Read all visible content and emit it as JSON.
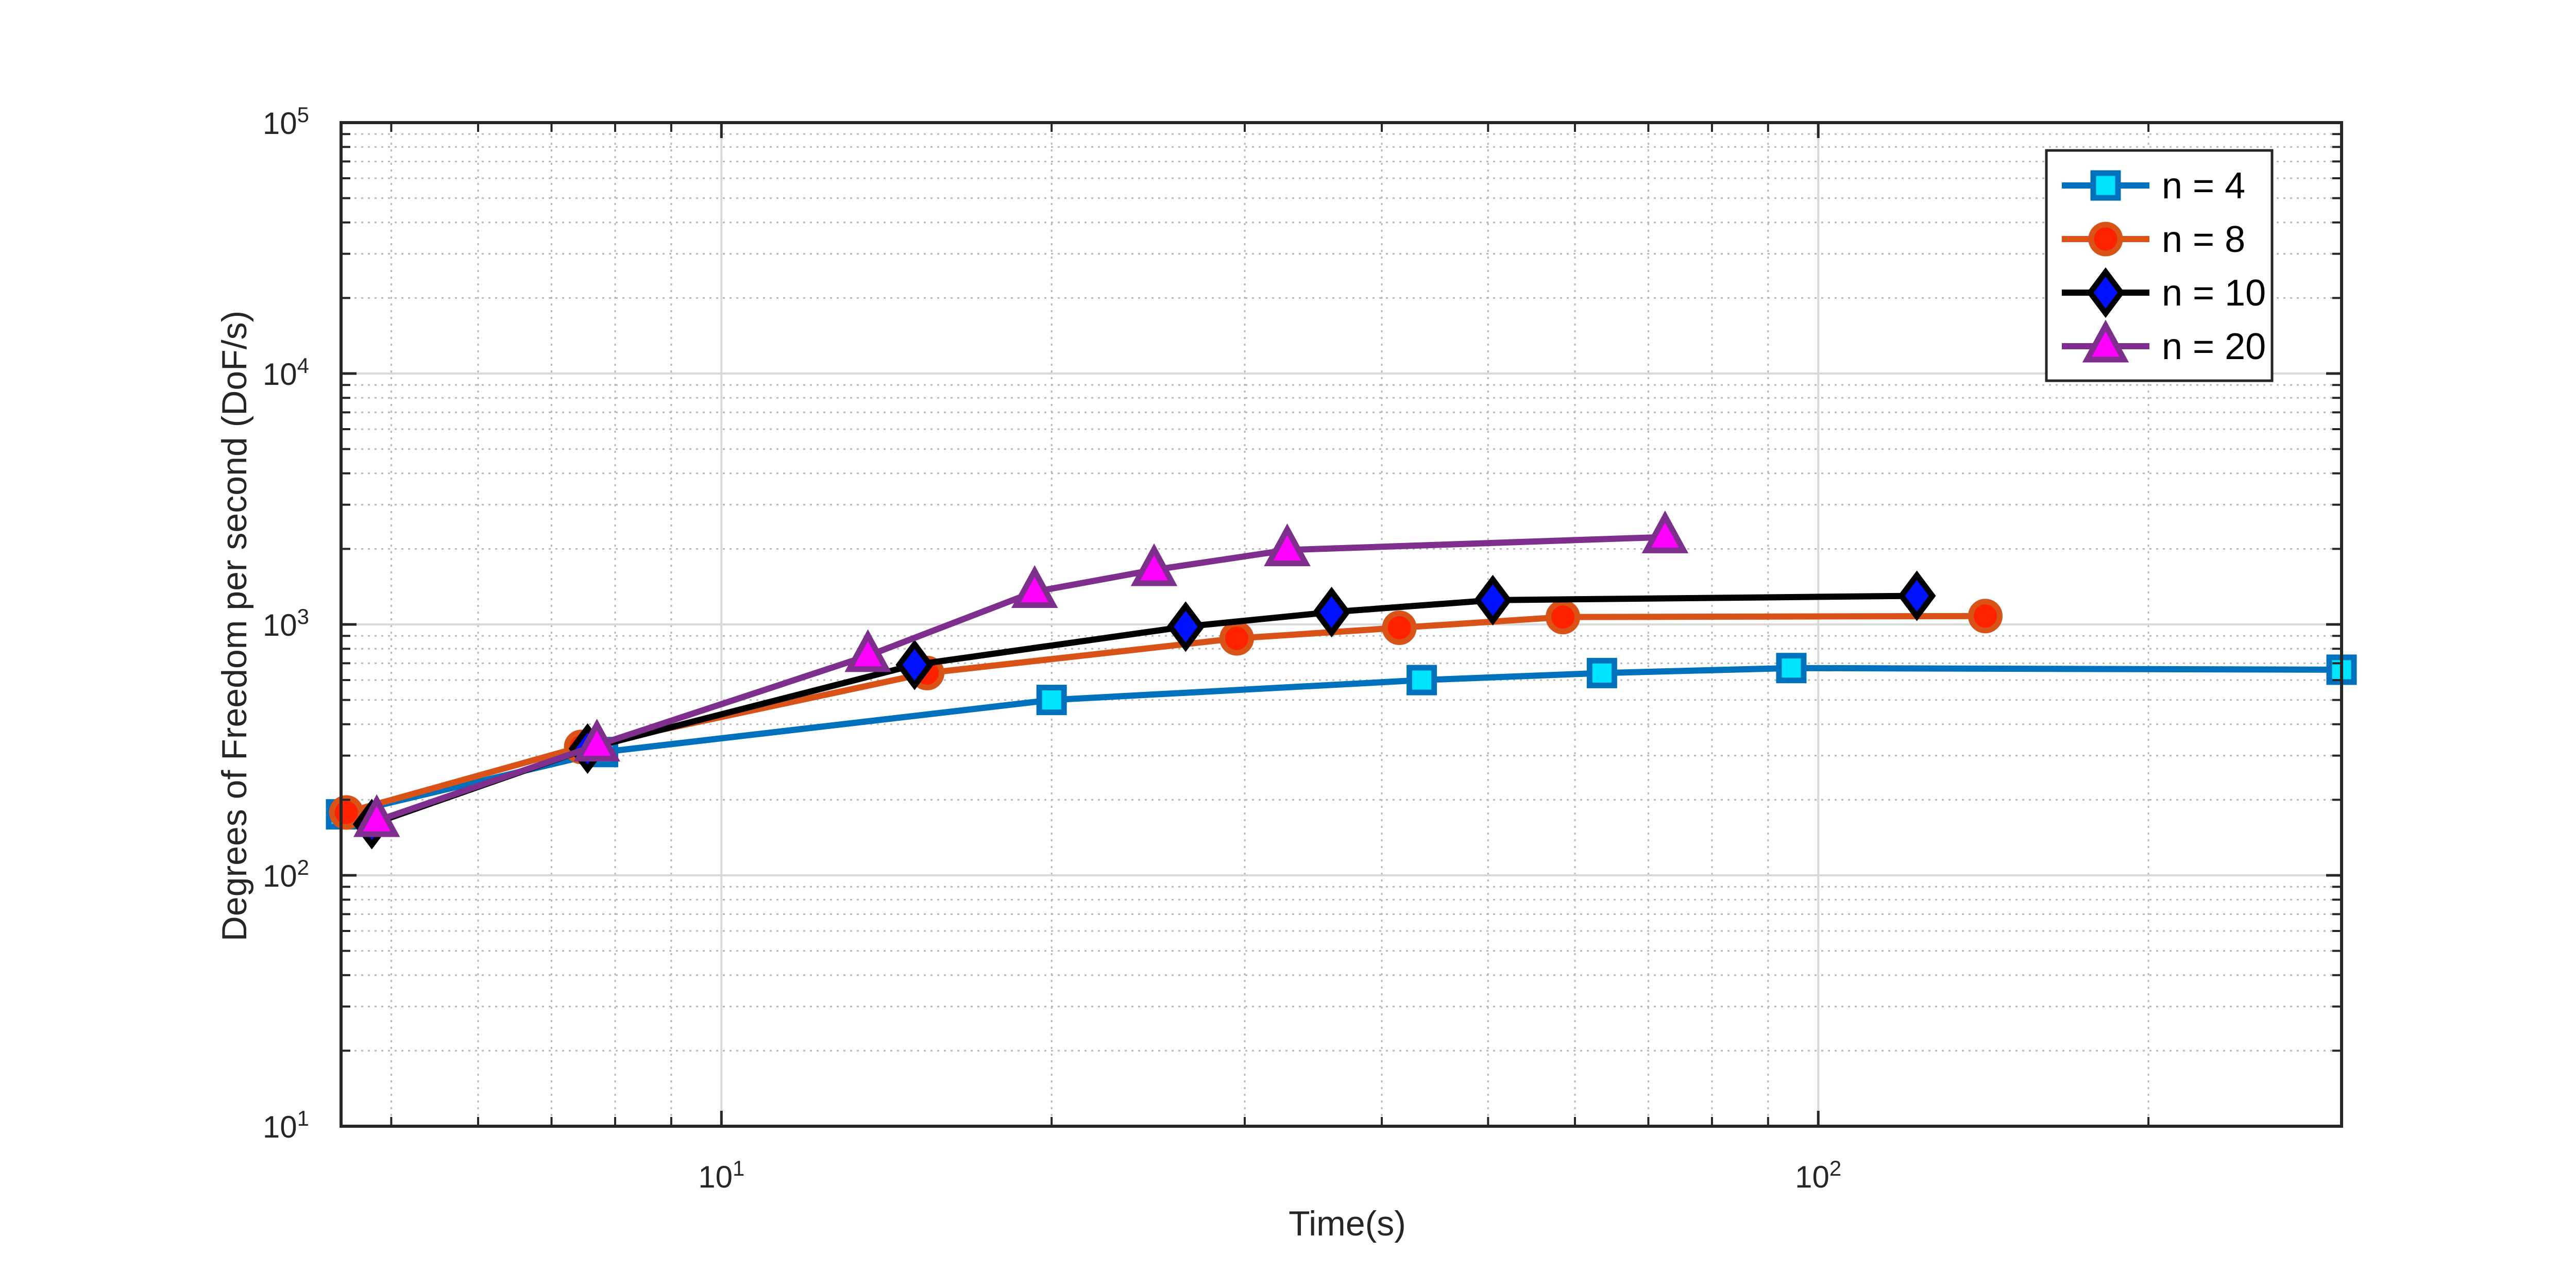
{
  "chart_data": {
    "type": "line",
    "xlabel": "Time(s)",
    "ylabel": "Degrees of Freedom per second (DoF/s)",
    "xscale": "log",
    "yscale": "log",
    "xlim": [
      4.5,
      300
    ],
    "ylim": [
      10,
      100000
    ],
    "grid": true,
    "minor_grid": true,
    "legend_position": "top-right",
    "x_ticks": [
      {
        "base": "10",
        "exp": "1",
        "value": 10
      },
      {
        "base": "10",
        "exp": "2",
        "value": 100
      }
    ],
    "y_ticks": [
      {
        "base": "10",
        "exp": "1",
        "value": 10
      },
      {
        "base": "10",
        "exp": "2",
        "value": 100
      },
      {
        "base": "10",
        "exp": "3",
        "value": 1000
      },
      {
        "base": "10",
        "exp": "4",
        "value": 10000
      },
      {
        "base": "10",
        "exp": "5",
        "value": 100000
      }
    ],
    "series": [
      {
        "name": "n = 4",
        "line_color": "#0072BD",
        "marker": "square",
        "marker_fill": "#00E5FF",
        "marker_edge": "#0072BD",
        "x": [
          4.5,
          7.8,
          20,
          43.5,
          63.5,
          94.5,
          300
        ],
        "y": [
          175,
          310,
          500,
          600,
          640,
          670,
          660
        ]
      },
      {
        "name": "n = 8",
        "line_color": "#D95319",
        "marker": "circle",
        "marker_fill": "#FF2200",
        "marker_edge": "#D95319",
        "x": [
          4.55,
          7.45,
          15.4,
          29.5,
          41.5,
          58.5,
          142
        ],
        "y": [
          178,
          325,
          640,
          880,
          970,
          1070,
          1080
        ]
      },
      {
        "name": "n = 10",
        "line_color": "#000000",
        "marker": "diamond",
        "marker_fill": "#0011FF",
        "marker_edge": "#000000",
        "x": [
          4.8,
          7.55,
          15,
          26.5,
          36,
          50.5,
          123
        ],
        "y": [
          160,
          320,
          690,
          980,
          1120,
          1250,
          1300
        ]
      },
      {
        "name": "n = 20",
        "line_color": "#7E2F8E",
        "marker": "triangle",
        "marker_fill": "#FF00FF",
        "marker_edge": "#7E2F8E",
        "x": [
          4.85,
          7.7,
          13.6,
          19.3,
          24.8,
          32.8,
          72.5
        ],
        "y": [
          165,
          330,
          750,
          1350,
          1650,
          1980,
          2230
        ]
      }
    ]
  }
}
